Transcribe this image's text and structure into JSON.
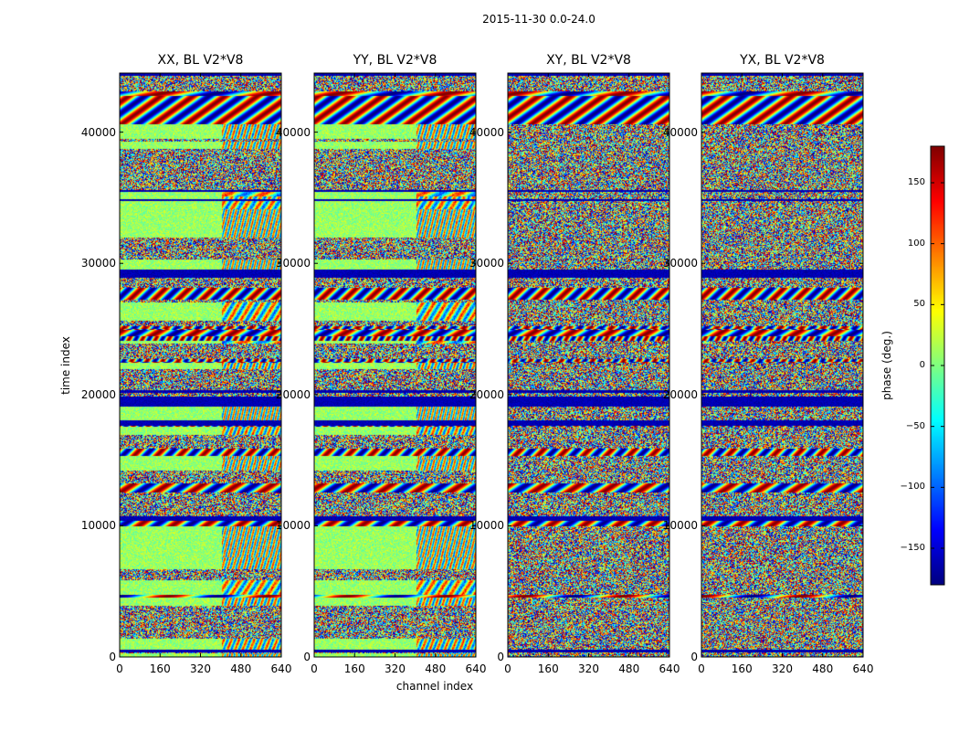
{
  "figure": {
    "suptitle": "2015-11-30 0.0-24.0"
  },
  "chart_data": {
    "type": "heatmap",
    "title": "2015-11-30 0.0-24.0",
    "xlabel": "channel index",
    "ylabel": "time index",
    "xlim": [
      0,
      640
    ],
    "ylim": [
      0,
      44500
    ],
    "xticks": [
      "0",
      "160",
      "320",
      "480",
      "640"
    ],
    "yticks": [
      "0",
      "10000",
      "20000",
      "30000",
      "40000"
    ],
    "panels": [
      {
        "title": "XX, BL V2*V8"
      },
      {
        "title": "YY, BL V2*V8"
      },
      {
        "title": "XY, BL V2*V8"
      },
      {
        "title": "YX, BL V2*V8"
      }
    ],
    "colorbar": {
      "label": "phase (deg.)",
      "range": [
        -180,
        180
      ],
      "ticks": [
        150,
        100,
        50,
        0,
        -50,
        -100,
        -150
      ],
      "tick_labels": [
        "150",
        "100",
        "50",
        "0",
        "−50",
        "−100",
        "−150"
      ],
      "colormap": "jet"
    }
  }
}
